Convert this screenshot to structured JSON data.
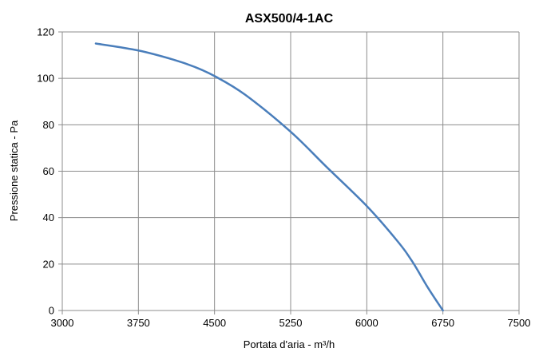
{
  "chart_data": {
    "type": "line",
    "title": "ASX500/4-1AC",
    "xlabel": "Portata d'aria - m³/h",
    "ylabel": "Pressione statica - Pa",
    "xlim": [
      3000,
      7500
    ],
    "ylim": [
      0,
      120
    ],
    "xticks": [
      3000,
      3750,
      4500,
      5250,
      6000,
      6750,
      7500
    ],
    "yticks": [
      0,
      20,
      40,
      60,
      80,
      100,
      120
    ],
    "grid": true,
    "series": [
      {
        "color": "#4a7ebb",
        "points": [
          [
            3330,
            115
          ],
          [
            3750,
            112
          ],
          [
            4100,
            108
          ],
          [
            4300,
            105
          ],
          [
            4500,
            101
          ],
          [
            4800,
            93
          ],
          [
            5250,
            77
          ],
          [
            5600,
            62
          ],
          [
            6000,
            45
          ],
          [
            6300,
            30
          ],
          [
            6450,
            21
          ],
          [
            6600,
            10
          ],
          [
            6750,
            0
          ]
        ]
      }
    ]
  }
}
